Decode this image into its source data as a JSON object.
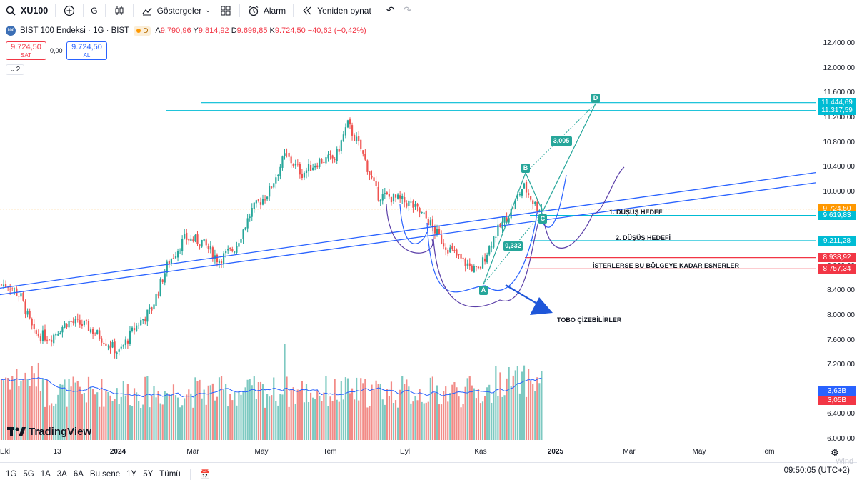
{
  "toolbar": {
    "symbol": "XU100",
    "interval": "G",
    "indicators_label": "Göstergeler",
    "alert_label": "Alarm",
    "replay_label": "Yeniden oynat"
  },
  "legend": {
    "logo_text": "100",
    "title": "BIST 100 Endeksi · 1G · BIST",
    "badge": "D",
    "open_key": "A",
    "open": "9.790,96",
    "high_key": "Y",
    "high": "9.814,92",
    "low_key": "D",
    "low": "9.699,85",
    "close_key": "K",
    "close": "9.724,50",
    "change": "−40,62 (−0,42%)"
  },
  "trade": {
    "sell_price": "9.724,50",
    "sell_label": "SAT",
    "spread": "0,00",
    "buy_price": "9.724,50",
    "buy_label": "AL",
    "collapse_count": "2"
  },
  "price_axis": {
    "ticks": [
      "12.400,00",
      "12.000,00",
      "11.600,00",
      "11.200,00",
      "10.800,00",
      "10.400,00",
      "10.000,00",
      "9.600,00",
      "9.200,00",
      "8.800,00",
      "8.400,00",
      "8.000,00",
      "7.600,00",
      "7.200,00",
      "6.800,00",
      "6.400,00",
      "6.000,00"
    ],
    "labels": [
      {
        "text": "11.444,69",
        "color": "#00bcd4"
      },
      {
        "text": "11.317,59",
        "color": "#00bcd4"
      },
      {
        "text": "9.724,50",
        "color": "#ff9800"
      },
      {
        "text": "9.619,83",
        "color": "#00bcd4"
      },
      {
        "text": "9.211,28",
        "color": "#00bcd4"
      },
      {
        "text": "8.938,92",
        "color": "#f23645"
      },
      {
        "text": "8.757,34",
        "color": "#f23645"
      },
      {
        "text": "3,63B",
        "color": "#2962ff"
      },
      {
        "text": "3,05B",
        "color": "#f23645"
      }
    ]
  },
  "time_axis": {
    "ticks": [
      {
        "text": "Eki",
        "bold": false
      },
      {
        "text": "13",
        "bold": false
      },
      {
        "text": "2024",
        "bold": true
      },
      {
        "text": "Mar",
        "bold": false
      },
      {
        "text": "May",
        "bold": false
      },
      {
        "text": "Tem",
        "bold": false
      },
      {
        "text": "Eyl",
        "bold": false
      },
      {
        "text": "Kas",
        "bold": false
      },
      {
        "text": "2025",
        "bold": true
      },
      {
        "text": "Mar",
        "bold": false
      },
      {
        "text": "May",
        "bold": false
      },
      {
        "text": "Tem",
        "bold": false
      }
    ]
  },
  "annotations": {
    "target1": "1. DÜŞÜŞ HEDEF",
    "target2": "2. DÜŞÜŞ HEDEFİ",
    "zone": "İSTERLERSE  BU BÖLGEYE KADAR ESNERLER",
    "tobo": "TOBO ÇİZEBİLİRLER",
    "ratio1": "3,005",
    "ratio2": "0,332",
    "point_a": "A",
    "point_b": "B",
    "point_c": "C",
    "point_d": "D"
  },
  "brand": "TradingView",
  "bottom": {
    "ranges": [
      "1G",
      "5G",
      "1A",
      "3A",
      "6A",
      "Bu sene",
      "1Y",
      "5Y",
      "Tümü"
    ],
    "clock": "09:50:05 (UTC+2)"
  },
  "watermark": "Wind",
  "colors": {
    "up": "#26a69a",
    "down": "#ef5350",
    "trend": "#2962ff",
    "target": "#00bcd4",
    "zone": "#f23645",
    "curve": "#5b3fa8",
    "price_line": "#ff9800"
  },
  "chart_data": {
    "type": "candlestick",
    "ylim": [
      5900,
      12650
    ],
    "close_path": [
      [
        "2023-10-02",
        8500
      ],
      [
        "2023-10-12",
        8300
      ],
      [
        "2023-10-23",
        7700
      ],
      [
        "2023-11-06",
        7650
      ],
      [
        "2023-11-20",
        7900
      ],
      [
        "2023-12-04",
        7850
      ],
      [
        "2023-12-18",
        7650
      ],
      [
        "2024-01-02",
        7400
      ],
      [
        "2024-01-15",
        7800
      ],
      [
        "2024-01-29",
        8100
      ],
      [
        "2024-02-12",
        8850
      ],
      [
        "2024-02-26",
        9250
      ],
      [
        "2024-03-11",
        9200
      ],
      [
        "2024-03-25",
        8900
      ],
      [
        "2024-04-08",
        9100
      ],
      [
        "2024-04-22",
        9700
      ],
      [
        "2024-05-06",
        10000
      ],
      [
        "2024-05-20",
        10600
      ],
      [
        "2024-06-03",
        10300
      ],
      [
        "2024-06-17",
        10500
      ],
      [
        "2024-07-01",
        10550
      ],
      [
        "2024-07-11",
        11100
      ],
      [
        "2024-07-22",
        10700
      ],
      [
        "2024-08-05",
        9950
      ],
      [
        "2024-08-19",
        9900
      ],
      [
        "2024-09-02",
        9800
      ],
      [
        "2024-09-16",
        9550
      ],
      [
        "2024-09-30",
        9150
      ],
      [
        "2024-10-14",
        8900
      ],
      [
        "2024-10-28",
        8700
      ],
      [
        "2024-11-11",
        9300
      ],
      [
        "2024-11-25",
        9700
      ],
      [
        "2024-12-05",
        10100
      ],
      [
        "2024-12-16",
        9760
      ],
      [
        "2024-12-27",
        9724.5
      ]
    ],
    "price_lines": [
      11444.69,
      11317.59,
      9724.5,
      9619.83,
      9211.28,
      8938.92,
      8757.34
    ],
    "volume_last": [
      "3,63B",
      "3,05B"
    ]
  }
}
